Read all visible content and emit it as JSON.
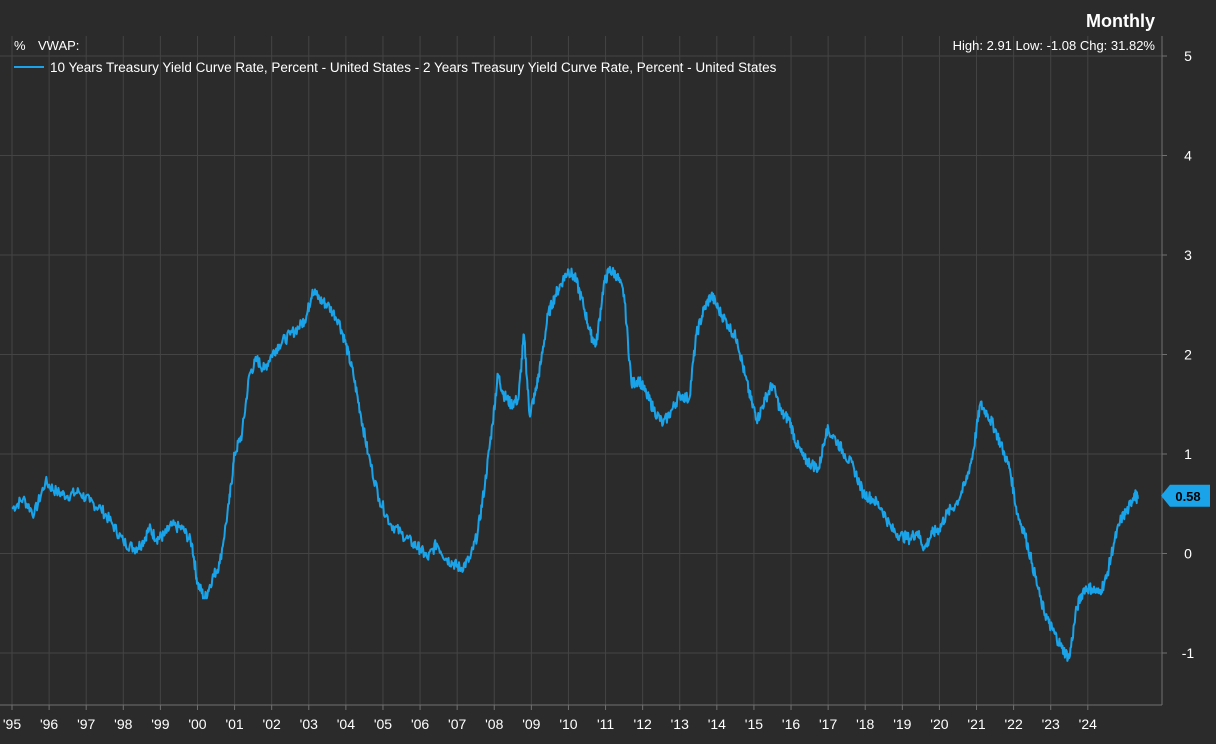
{
  "chart_data": {
    "type": "line",
    "title": "Monthly",
    "unit_label": "%",
    "vwap_label": "VWAP:",
    "stats_text": "High: 2.91 Low: -1.08 Chg: 31.82%",
    "series": [
      {
        "name": "10 Years Treasury Yield Curve Rate, Percent - United States - 2 Years Treasury Yield Curve Rate, Percent - United States",
        "color": "#1aa3e8",
        "points": [
          [
            1995.0,
            0.45
          ],
          [
            1995.3,
            0.55
          ],
          [
            1995.6,
            0.4
          ],
          [
            1995.9,
            0.72
          ],
          [
            1996.2,
            0.62
          ],
          [
            1996.5,
            0.58
          ],
          [
            1996.8,
            0.62
          ],
          [
            1997.1,
            0.52
          ],
          [
            1997.4,
            0.45
          ],
          [
            1997.7,
            0.3
          ],
          [
            1998.0,
            0.12
          ],
          [
            1998.3,
            0.05
          ],
          [
            1998.5,
            0.1
          ],
          [
            1998.7,
            0.25
          ],
          [
            1998.9,
            0.15
          ],
          [
            1999.1,
            0.18
          ],
          [
            1999.3,
            0.28
          ],
          [
            1999.6,
            0.25
          ],
          [
            1999.85,
            0.1
          ],
          [
            2000.0,
            -0.3
          ],
          [
            2000.2,
            -0.45
          ],
          [
            2000.4,
            -0.25
          ],
          [
            2000.6,
            -0.1
          ],
          [
            2000.85,
            0.5
          ],
          [
            2001.0,
            1.0
          ],
          [
            2001.2,
            1.2
          ],
          [
            2001.4,
            1.8
          ],
          [
            2001.6,
            1.95
          ],
          [
            2001.8,
            1.85
          ],
          [
            2002.0,
            2.0
          ],
          [
            2002.2,
            2.1
          ],
          [
            2002.5,
            2.2
          ],
          [
            2002.8,
            2.3
          ],
          [
            2002.95,
            2.4
          ],
          [
            2003.1,
            2.65
          ],
          [
            2003.3,
            2.55
          ],
          [
            2003.5,
            2.5
          ],
          [
            2003.8,
            2.35
          ],
          [
            2004.0,
            2.1
          ],
          [
            2004.2,
            1.8
          ],
          [
            2004.4,
            1.4
          ],
          [
            2004.6,
            1.0
          ],
          [
            2004.9,
            0.55
          ],
          [
            2005.2,
            0.3
          ],
          [
            2005.5,
            0.2
          ],
          [
            2005.8,
            0.1
          ],
          [
            2006.0,
            0.05
          ],
          [
            2006.2,
            -0.05
          ],
          [
            2006.45,
            0.1
          ],
          [
            2006.7,
            -0.05
          ],
          [
            2006.9,
            -0.1
          ],
          [
            2007.1,
            -0.15
          ],
          [
            2007.35,
            -0.05
          ],
          [
            2007.55,
            0.2
          ],
          [
            2007.75,
            0.7
          ],
          [
            2007.95,
            1.3
          ],
          [
            2008.1,
            1.8
          ],
          [
            2008.25,
            1.6
          ],
          [
            2008.45,
            1.5
          ],
          [
            2008.65,
            1.55
          ],
          [
            2008.8,
            2.2
          ],
          [
            2008.95,
            1.4
          ],
          [
            2009.1,
            1.6
          ],
          [
            2009.25,
            1.9
          ],
          [
            2009.45,
            2.4
          ],
          [
            2009.65,
            2.6
          ],
          [
            2009.85,
            2.75
          ],
          [
            2010.0,
            2.85
          ],
          [
            2010.2,
            2.75
          ],
          [
            2010.4,
            2.5
          ],
          [
            2010.6,
            2.2
          ],
          [
            2010.75,
            2.1
          ],
          [
            2010.95,
            2.7
          ],
          [
            2011.1,
            2.85
          ],
          [
            2011.3,
            2.8
          ],
          [
            2011.5,
            2.6
          ],
          [
            2011.7,
            1.7
          ],
          [
            2011.9,
            1.75
          ],
          [
            2012.1,
            1.6
          ],
          [
            2012.3,
            1.45
          ],
          [
            2012.55,
            1.3
          ],
          [
            2012.8,
            1.45
          ],
          [
            2013.0,
            1.6
          ],
          [
            2013.25,
            1.55
          ],
          [
            2013.45,
            2.2
          ],
          [
            2013.65,
            2.45
          ],
          [
            2013.85,
            2.6
          ],
          [
            2014.05,
            2.45
          ],
          [
            2014.3,
            2.3
          ],
          [
            2014.55,
            2.15
          ],
          [
            2014.75,
            1.8
          ],
          [
            2014.95,
            1.5
          ],
          [
            2015.1,
            1.35
          ],
          [
            2015.3,
            1.55
          ],
          [
            2015.5,
            1.7
          ],
          [
            2015.75,
            1.4
          ],
          [
            2015.95,
            1.35
          ],
          [
            2016.15,
            1.1
          ],
          [
            2016.35,
            0.95
          ],
          [
            2016.55,
            0.9
          ],
          [
            2016.75,
            0.85
          ],
          [
            2016.95,
            1.25
          ],
          [
            2017.2,
            1.15
          ],
          [
            2017.45,
            1.0
          ],
          [
            2017.7,
            0.85
          ],
          [
            2017.95,
            0.6
          ],
          [
            2018.2,
            0.55
          ],
          [
            2018.45,
            0.45
          ],
          [
            2018.7,
            0.25
          ],
          [
            2018.95,
            0.18
          ],
          [
            2019.2,
            0.15
          ],
          [
            2019.4,
            0.22
          ],
          [
            2019.6,
            0.05
          ],
          [
            2019.8,
            0.2
          ],
          [
            2020.0,
            0.25
          ],
          [
            2020.2,
            0.4
          ],
          [
            2020.45,
            0.5
          ],
          [
            2020.7,
            0.7
          ],
          [
            2020.9,
            1.0
          ],
          [
            2021.1,
            1.5
          ],
          [
            2021.3,
            1.4
          ],
          [
            2021.5,
            1.25
          ],
          [
            2021.7,
            1.05
          ],
          [
            2021.9,
            0.85
          ],
          [
            2022.1,
            0.4
          ],
          [
            2022.3,
            0.2
          ],
          [
            2022.5,
            -0.1
          ],
          [
            2022.75,
            -0.5
          ],
          [
            2022.95,
            -0.7
          ],
          [
            2023.1,
            -0.8
          ],
          [
            2023.3,
            -0.95
          ],
          [
            2023.5,
            -1.05
          ],
          [
            2023.7,
            -0.55
          ],
          [
            2023.9,
            -0.35
          ],
          [
            2024.1,
            -0.35
          ],
          [
            2024.3,
            -0.4
          ],
          [
            2024.5,
            -0.25
          ],
          [
            2024.7,
            0.1
          ],
          [
            2024.9,
            0.35
          ],
          [
            2025.1,
            0.45
          ],
          [
            2025.25,
            0.6
          ],
          [
            2025.35,
            0.55
          ]
        ]
      }
    ],
    "last_value_label": "0.58",
    "last_value": 0.58,
    "y_axis": {
      "position": "right",
      "min": -1.5,
      "max": 5,
      "ticks": [
        5,
        4,
        3,
        2,
        1,
        0,
        -1
      ],
      "tick_labels": [
        "5",
        "4",
        "3",
        "2",
        "1",
        "0",
        "-1"
      ]
    },
    "x_axis": {
      "min": 1995.0,
      "max": 2026.0,
      "ticks": [
        1995,
        1996,
        1997,
        1998,
        1999,
        2000,
        2001,
        2002,
        2003,
        2004,
        2005,
        2006,
        2007,
        2008,
        2009,
        2010,
        2011,
        2012,
        2013,
        2014,
        2015,
        2016,
        2017,
        2018,
        2019,
        2020,
        2021,
        2022,
        2023,
        2024
      ],
      "tick_labels": [
        "'95",
        "'96",
        "'97",
        "'98",
        "'99",
        "'00",
        "'01",
        "'02",
        "'03",
        "'04",
        "'05",
        "'06",
        "'07",
        "'08",
        "'09",
        "'10",
        "'11",
        "'12",
        "'13",
        "'14",
        "'15",
        "'16",
        "'17",
        "'18",
        "'19",
        "'20",
        "'21",
        "'22",
        "'23",
        "'24"
      ]
    },
    "grid": true,
    "legend_position": "top-left",
    "colors": {
      "background": "#2b2b2b",
      "grid": "#444444",
      "text": "#ffffff",
      "line": "#1aa3e8"
    }
  }
}
